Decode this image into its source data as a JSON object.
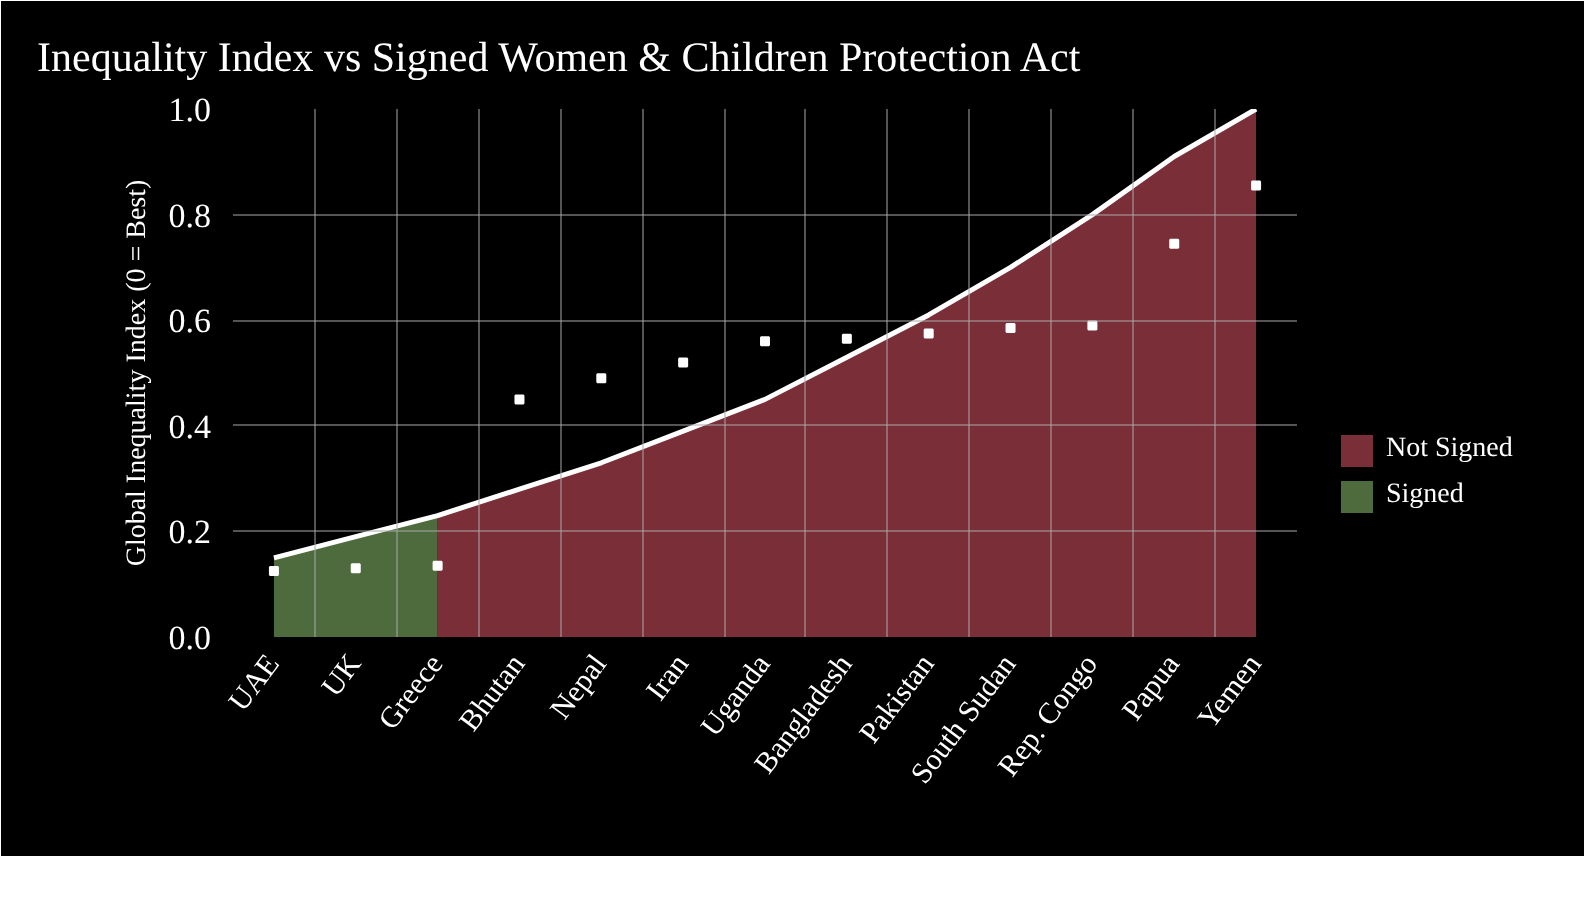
{
  "chart_data": {
    "type": "scatter",
    "title": "Inequality Index vs Signed Women & Children Protection Act",
    "ylabel": "Global Inequality Index (0 = Best)",
    "categories": [
      "UAE",
      "UK",
      "Greece",
      "Bhutan",
      "Nepal",
      "Iran",
      "Uganda",
      "Bangladesh",
      "Pakistan",
      "South Sudan",
      "Rep. Congo",
      "Papua",
      "Yemen"
    ],
    "series": [
      {
        "name": "Not Signed",
        "type": "area",
        "color": "#7a2f38",
        "values": [
          null,
          null,
          0.23,
          0.28,
          0.33,
          0.39,
          0.45,
          0.53,
          0.61,
          0.7,
          0.8,
          0.91,
          1.0
        ]
      },
      {
        "name": "Signed",
        "type": "area",
        "color": "#4d6b3c",
        "values": [
          0.15,
          0.19,
          0.23,
          null,
          null,
          null,
          null,
          null,
          null,
          null,
          null,
          null,
          null
        ]
      },
      {
        "type": "line",
        "color": "#ffffff",
        "values": [
          0.15,
          0.19,
          0.23,
          0.28,
          0.33,
          0.39,
          0.45,
          0.53,
          0.61,
          0.7,
          0.8,
          0.91,
          1.0
        ]
      },
      {
        "color": "#ffffff",
        "marker": "square",
        "values": [
          0.125,
          0.13,
          0.135,
          0.45,
          0.49,
          0.52,
          0.56,
          0.565,
          0.575,
          0.585,
          0.59,
          0.745,
          0.855
        ]
      }
    ],
    "ylim": [
      0,
      1.0
    ],
    "yticks": [
      {
        "value": 0,
        "label": "0.0"
      },
      0.2,
      0.4,
      0.6,
      0.8,
      {
        "value": 1.0,
        "label": "1.0"
      }
    ],
    "grid": true,
    "legend": "right",
    "marker": "none"
  }
}
